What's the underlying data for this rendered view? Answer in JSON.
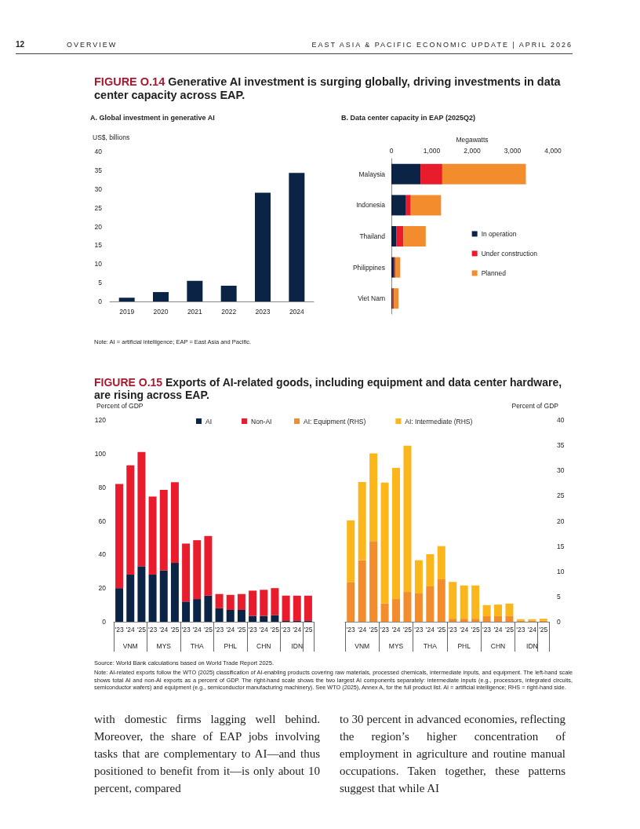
{
  "chart_data": [
    {
      "type": "bar",
      "title": "A. Global investment in generative AI",
      "ylabel": "US$, billions",
      "categories": [
        "2019",
        "2020",
        "2021",
        "2022",
        "2023",
        "2024"
      ],
      "values": [
        1.0,
        2.5,
        5.5,
        4.2,
        29,
        34.3
      ],
      "color": "#0b2345",
      "ylim": [
        0,
        40
      ],
      "yticks": [
        0,
        5,
        10,
        15,
        20,
        25,
        30,
        35,
        40
      ],
      "grid": false,
      "annotations": [
        "12",
        "OVERVIEW",
        "EAST ASIA & PACIFIC ECONOMIC UPDATE | APRIL 2026",
        "FIGURE O.14",
        "Generative AI investment is surging globally, driving investments in data center capacity across EAP."
      ]
    },
    {
      "type": "bar",
      "orientation": "horizontal",
      "stacked": true,
      "title": "B. Data center capacity in EAP (2025Q2)",
      "xlabel": "Megawatts",
      "categories": [
        "Malaysia",
        "Indonesia",
        "Thailand",
        "Philippines",
        "Viet Nam"
      ],
      "series": [
        {
          "name": "In operation",
          "color": "#0b2345",
          "values": [
            720,
            350,
            120,
            70,
            30
          ]
        },
        {
          "name": "Under construction",
          "color": "#e91c2e",
          "values": [
            540,
            130,
            180,
            30,
            30
          ]
        },
        {
          "name": "Planned",
          "color": "#f28c2c",
          "values": [
            2070,
            750,
            550,
            120,
            120
          ]
        }
      ],
      "xlim": [
        0,
        4000
      ],
      "xticks": [
        0,
        {
          "value": 1000,
          "label": "1,000"
        },
        {
          "value": 2000,
          "label": "2,000"
        },
        {
          "value": 3000,
          "label": "3,000"
        },
        {
          "value": 4000,
          "label": "4,000"
        }
      ],
      "grid": false,
      "legend": "right",
      "annotations": [
        "Note: AI = artificial intelligence; EAP = East Asia and Pacific."
      ]
    },
    {
      "type": "bar",
      "stacked": true,
      "subtitle": "FIGURE O.15",
      "title": "Exports of AI-related goods, including equipment and data center hardware, are rising across EAP.",
      "ylabel": "Percent of GDP",
      "categories": [
        "'23",
        "'24",
        "'25",
        "'23",
        "'24",
        "'25",
        "'23",
        "'24",
        "'25",
        "'23",
        "'24",
        "'25",
        "'23",
        "'24",
        "'25",
        "'23",
        "'24",
        "'25"
      ],
      "series": [
        {
          "name": "AI",
          "color": "#0b2345",
          "values": [
            20,
            28,
            33,
            28,
            30.5,
            35,
            12,
            13.5,
            15.5,
            8,
            7,
            7,
            3.5,
            3.5,
            4,
            0.5,
            0.5,
            0.5
          ]
        },
        {
          "name": "Non-AI",
          "color": "#e91c2e",
          "values": [
            62,
            65,
            68,
            46.5,
            48,
            48,
            34.5,
            35,
            35.5,
            8.5,
            9,
            9.5,
            15,
            15.5,
            16,
            15,
            15,
            15
          ]
        }
      ],
      "ylim": [
        0,
        120
      ],
      "yticks": [
        0,
        20,
        40,
        60,
        80,
        100,
        120
      ],
      "grid": false,
      "legend": "top",
      "annotations": [
        "VNM",
        "MYS",
        "THA",
        "PHL",
        "CHN",
        "IDN"
      ]
    },
    {
      "type": "bar",
      "stacked": true,
      "y2label": "Percent of GDP",
      "categories": [
        "'23",
        "'24",
        "'25",
        "'23",
        "'24",
        "'25",
        "'23",
        "'24",
        "'25",
        "'23",
        "'24",
        "'25",
        "'23",
        "'24",
        "'25",
        "'23",
        "'24",
        "'25"
      ],
      "series": [
        {
          "name": "AI: Equipment (RHS)",
          "color": "#f28c2c",
          "axis": "y2",
          "values": [
            7.8,
            12.2,
            16,
            3.6,
            4.5,
            5.9,
            5.6,
            7,
            8.4,
            0.6,
            0.6,
            0.6,
            1.1,
            1.1,
            1.1,
            0.2,
            0.2,
            0.2
          ]
        },
        {
          "name": "AI: Intermediate (RHS)",
          "color": "#fbb61b",
          "axis": "y2",
          "values": [
            12.3,
            15.5,
            17.4,
            24,
            26,
            29,
            6.6,
            6.4,
            6.6,
            7.3,
            6.6,
            6.6,
            2.2,
            2.3,
            2.5,
            0.3,
            0.3,
            0.4
          ]
        }
      ],
      "y2lim": [
        0,
        40
      ],
      "y2ticks": [
        0,
        5,
        10,
        15,
        20,
        25,
        30,
        35,
        40
      ],
      "grid": false,
      "legend": "top",
      "annotations": [
        "VNM",
        "MYS",
        "THA",
        "PHL",
        "CHN",
        "IDN",
        "Source: World Bank calculations based on World Trade Report 2025.",
        "Note: AI-related exports follow the WTO (2025) classification of AI-enabling products covering raw materials, processed chemicals, intermediate inputs, and equipment. The left-hand scale shows total AI and non-AI exports as a percent of GDP. The right-hand scale shows the two largest AI components separately: intermediate inputs (e.g., processors, integrated circuits, semiconductor wafers) and equipment (e.g., semiconductor manufacturing machinery). See WTO (2025), Annex A, for the full product list. AI = artificial intelligence; RHS = right-hand side.",
        "with domestic firms lagging well behind. Moreover, the share of EAP jobs involving tasks that are complementary to AI—and thus positioned to benefit from it—is only about 10 percent, compared",
        "to 30 percent in advanced economies, reflecting the region’s higher concentration of employment in agriculture and routine manual occupations. Taken together, these patterns suggest that while AI"
      ]
    }
  ]
}
